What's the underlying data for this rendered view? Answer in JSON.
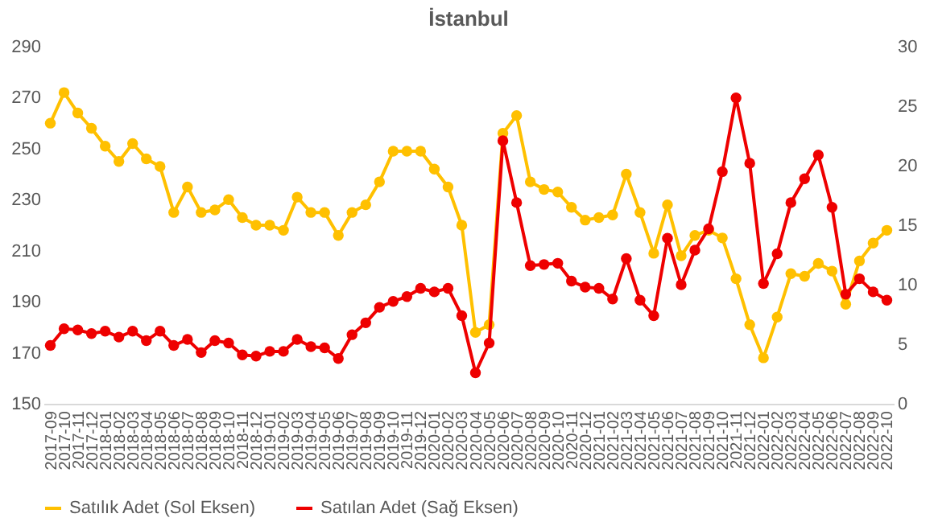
{
  "chart_data": {
    "type": "line",
    "title": "İstanbul",
    "categories": [
      "2017-09",
      "2017-10",
      "2017-11",
      "2017-12",
      "2018-01",
      "2018-02",
      "2018-03",
      "2018-04",
      "2018-05",
      "2018-06",
      "2018-07",
      "2018-08",
      "2018-09",
      "2018-10",
      "2018-11",
      "2018-12",
      "2019-01",
      "2019-02",
      "2019-03",
      "2019-04",
      "2019-05",
      "2019-06",
      "2019-07",
      "2019-08",
      "2019-09",
      "2019-10",
      "2019-11",
      "2019-12",
      "2020-01",
      "2020-02",
      "2020-03",
      "2020-04",
      "2020-05",
      "2020-06",
      "2020-07",
      "2020-08",
      "2020-09",
      "2020-10",
      "2020-11",
      "2020-12",
      "2021-01",
      "2021-02",
      "2021-03",
      "2021-04",
      "2021-05",
      "2021-06",
      "2021-07",
      "2021-08",
      "2021-09",
      "2021-10",
      "2021-11",
      "2021-12",
      "2022-01",
      "2022-02",
      "2022-03",
      "2022-04",
      "2022-05",
      "2022-06",
      "2022-07",
      "2022-08",
      "2022-09",
      "2022-10"
    ],
    "series": [
      {
        "name": "Satılık Adet (Sol Eksen)",
        "color": "#ffc000",
        "values": [
          260,
          272,
          264,
          258,
          251,
          245,
          252,
          246,
          243,
          225,
          235,
          225,
          226,
          230,
          223,
          220,
          220,
          218,
          231,
          225,
          225,
          216,
          225,
          228,
          237,
          249,
          249,
          249,
          242,
          235,
          220,
          178,
          181,
          256,
          263,
          237,
          234,
          233,
          227,
          222,
          223,
          224,
          240,
          225,
          209,
          228,
          208,
          216,
          218,
          215,
          199,
          181,
          168,
          184,
          201,
          200,
          205,
          202,
          189,
          206,
          213,
          218
        ]
      },
      {
        "name": "Satılan Adet (Sağ Eksen)",
        "color": "#ee0000",
        "axis": "y2",
        "values": [
          4.9,
          6.3,
          6.2,
          5.9,
          6.1,
          5.6,
          6.1,
          5.3,
          6.1,
          4.9,
          5.4,
          4.3,
          5.3,
          5.1,
          4.1,
          4.0,
          4.4,
          4.4,
          5.4,
          4.8,
          4.7,
          3.8,
          5.8,
          6.8,
          8.1,
          8.6,
          9.0,
          9.7,
          9.4,
          9.7,
          7.4,
          2.6,
          5.1,
          22.1,
          16.9,
          11.6,
          11.7,
          11.8,
          10.3,
          9.8,
          9.7,
          8.8,
          12.2,
          8.7,
          7.4,
          13.9,
          10.0,
          12.9,
          14.7,
          19.5,
          25.7,
          20.2,
          10.1,
          12.6,
          16.9,
          18.9,
          20.9,
          16.5,
          9.2,
          10.5,
          9.4,
          8.7
        ]
      }
    ],
    "ylim": [
      150,
      290
    ],
    "yticks": [
      150,
      170,
      190,
      210,
      230,
      250,
      270,
      290
    ],
    "y2lim": [
      0,
      30
    ],
    "y2ticks": [
      0,
      5,
      10,
      15,
      20,
      25,
      30
    ],
    "marker": "circle",
    "legend": "bottom",
    "grid": false
  }
}
